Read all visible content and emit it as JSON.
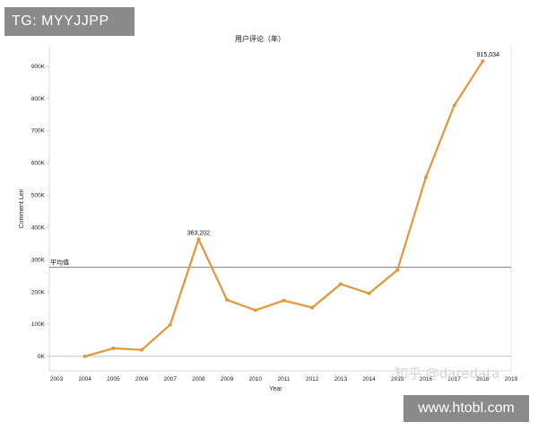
{
  "watermarks": {
    "tag": "TG: MYYJJPP",
    "url": "www.htobl.com",
    "zh": "知乎 @daredata"
  },
  "colors": {
    "line": "#e3963a",
    "reference": "#888888",
    "grid": "#d8d8d8"
  },
  "chart_data": {
    "type": "line",
    "title": "用户评论（年）",
    "xlabel": "Year",
    "ylabel": "Comment Len",
    "x_ticks": [
      "2003",
      "2004",
      "2005",
      "2006",
      "2007",
      "2008",
      "2009",
      "2010",
      "2011",
      "2012",
      "2013",
      "2014",
      "2015",
      "2016",
      "2017",
      "2018",
      "2019"
    ],
    "x_range": [
      2003,
      2019
    ],
    "y_ticks": [
      0,
      100000,
      200000,
      300000,
      400000,
      500000,
      600000,
      700000,
      800000,
      900000
    ],
    "y_tick_labels": [
      "0K",
      "100K",
      "200K",
      "300K",
      "400K",
      "500K",
      "600K",
      "700K",
      "800K",
      "900K"
    ],
    "y_range": [
      -45000,
      960000
    ],
    "series": [
      {
        "x": [
          2004,
          2005,
          2006,
          2007,
          2008,
          2009,
          2010,
          2011,
          2012,
          2013,
          2014,
          2015,
          2016,
          2017,
          2018
        ],
        "y": [
          0,
          25000,
          20000,
          98000,
          363202,
          175000,
          143000,
          173000,
          151000,
          224000,
          195000,
          268000,
          555000,
          778000,
          915034
        ]
      }
    ],
    "data_labels": [
      {
        "x": 2008,
        "y": 363202,
        "text": "363,202"
      },
      {
        "x": 2018,
        "y": 915034,
        "text": "915,034"
      }
    ],
    "reference_line": {
      "label": "平均值",
      "value": 276000
    },
    "grid": false,
    "legend": "none"
  }
}
